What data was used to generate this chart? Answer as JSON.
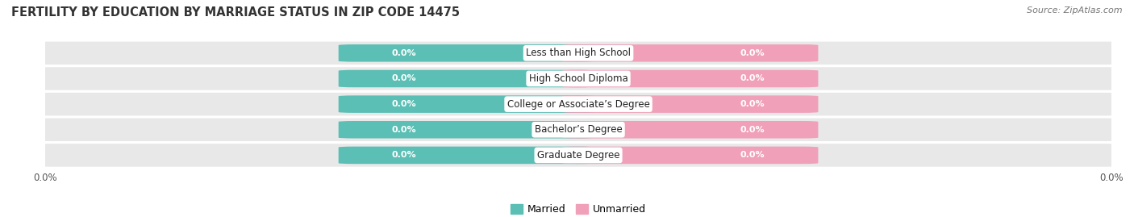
{
  "title": "FERTILITY BY EDUCATION BY MARRIAGE STATUS IN ZIP CODE 14475",
  "source": "Source: ZipAtlas.com",
  "categories": [
    "Less than High School",
    "High School Diploma",
    "College or Associate’s Degree",
    "Bachelor’s Degree",
    "Graduate Degree"
  ],
  "married_values": [
    0.0,
    0.0,
    0.0,
    0.0,
    0.0
  ],
  "unmarried_values": [
    0.0,
    0.0,
    0.0,
    0.0,
    0.0
  ],
  "married_color": "#5BBFB5",
  "unmarried_color": "#F0A0B8",
  "row_bg_color": "#E8E8E8",
  "title_fontsize": 10.5,
  "source_fontsize": 8,
  "tick_fontsize": 8.5,
  "legend_fontsize": 9,
  "value_label_fontsize": 8,
  "category_fontsize": 8.5,
  "background_color": "#FFFFFF",
  "label_value_text": "0.0%"
}
